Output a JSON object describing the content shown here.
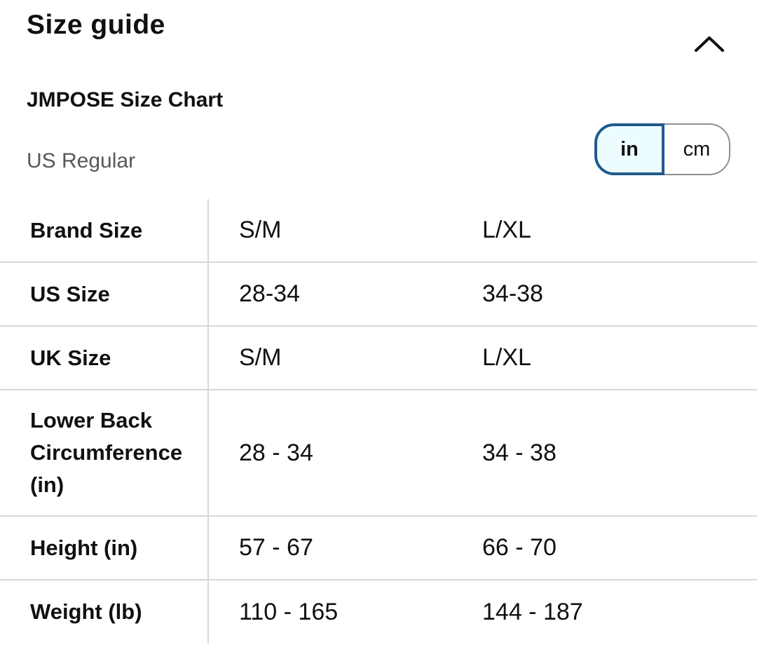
{
  "header": {
    "title": "Size guide",
    "collapse_icon": "chevron-up-icon"
  },
  "chart": {
    "title": "JMPOSE Size Chart",
    "region": "US Regular",
    "units": {
      "options": [
        "in",
        "cm"
      ],
      "selected": "in"
    }
  },
  "table": {
    "rows": [
      {
        "label": "Brand Size",
        "values": [
          "S/M",
          "L/XL"
        ]
      },
      {
        "label": "US Size",
        "values": [
          "28-34",
          "34-38"
        ]
      },
      {
        "label": "UK Size",
        "values": [
          "S/M",
          "L/XL"
        ]
      },
      {
        "label": "Lower Back Circumference (in)",
        "values": [
          "28 - 34",
          "34 - 38"
        ]
      },
      {
        "label": "Height (in)",
        "values": [
          "57 - 67",
          "66 - 70"
        ]
      },
      {
        "label": "Weight (lb)",
        "values": [
          "110 - 165",
          "144 - 187"
        ]
      }
    ]
  }
}
